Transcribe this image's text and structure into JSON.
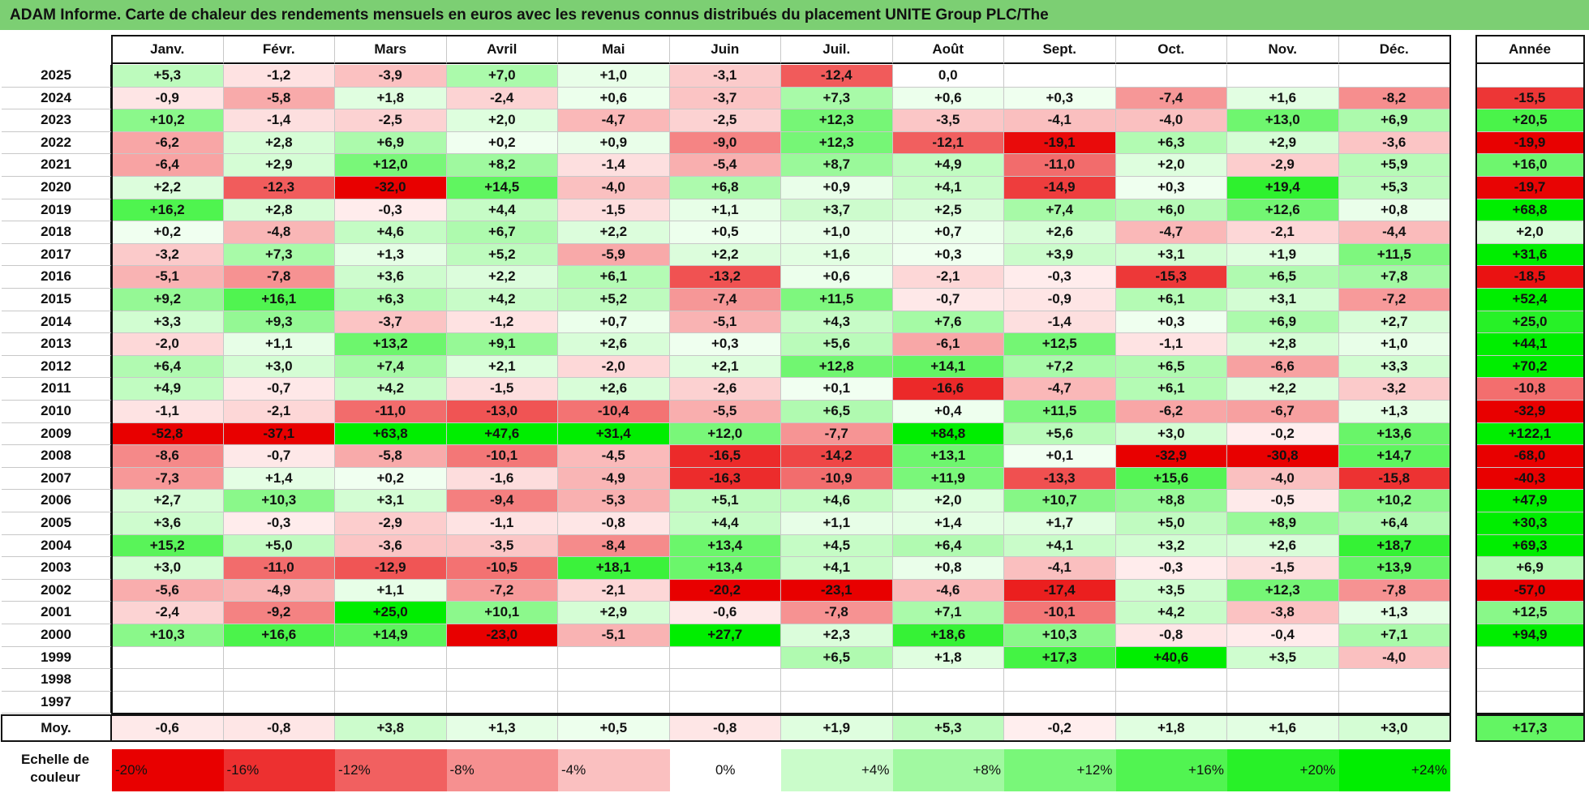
{
  "title": "ADAM Informe. Carte de chaleur des rendements mensuels en euros avec les revenus connus distribués du placement UNITE Group PLC/The",
  "chart_data": {
    "type": "heatmap",
    "months": [
      "Janv.",
      "Févr.",
      "Mars",
      "Avril",
      "Mai",
      "Juin",
      "Juil.",
      "Août",
      "Sept.",
      "Oct.",
      "Nov.",
      "Déc."
    ],
    "year_header": "Année",
    "rows": [
      {
        "year": "2025",
        "values": [
          "+5,3",
          "-1,2",
          "-3,9",
          "+7,0",
          "+1,0",
          "-3,1",
          "-12,4",
          "0,0",
          "",
          "",
          "",
          ""
        ],
        "annual": ""
      },
      {
        "year": "2024",
        "values": [
          "-0,9",
          "-5,8",
          "+1,8",
          "-2,4",
          "+0,6",
          "-3,7",
          "+7,3",
          "+0,6",
          "+0,3",
          "-7,4",
          "+1,6",
          "-8,2"
        ],
        "annual": "-15,5"
      },
      {
        "year": "2023",
        "values": [
          "+10,2",
          "-1,4",
          "-2,5",
          "+2,0",
          "-4,7",
          "-2,5",
          "+12,3",
          "-3,5",
          "-4,1",
          "-4,0",
          "+13,0",
          "+6,9"
        ],
        "annual": "+20,5"
      },
      {
        "year": "2022",
        "values": [
          "-6,2",
          "+2,8",
          "+6,9",
          "+0,2",
          "+0,9",
          "-9,0",
          "+12,3",
          "-12,1",
          "-19,1",
          "+6,3",
          "+2,9",
          "-3,6"
        ],
        "annual": "-19,9"
      },
      {
        "year": "2021",
        "values": [
          "-6,4",
          "+2,9",
          "+12,0",
          "+8,2",
          "-1,4",
          "-5,4",
          "+8,7",
          "+4,9",
          "-11,0",
          "+2,0",
          "-2,9",
          "+5,9"
        ],
        "annual": "+16,0"
      },
      {
        "year": "2020",
        "values": [
          "+2,2",
          "-12,3",
          "-32,0",
          "+14,5",
          "-4,0",
          "+6,8",
          "+0,9",
          "+4,1",
          "-14,9",
          "+0,3",
          "+19,4",
          "+5,3"
        ],
        "annual": "-19,7"
      },
      {
        "year": "2019",
        "values": [
          "+16,2",
          "+2,8",
          "-0,3",
          "+4,4",
          "-1,5",
          "+1,1",
          "+3,7",
          "+2,5",
          "+7,4",
          "+6,0",
          "+12,6",
          "+0,8"
        ],
        "annual": "+68,8"
      },
      {
        "year": "2018",
        "values": [
          "+0,2",
          "-4,8",
          "+4,6",
          "+6,7",
          "+2,2",
          "+0,5",
          "+1,0",
          "+0,7",
          "+2,6",
          "-4,7",
          "-2,1",
          "-4,4"
        ],
        "annual": "+2,0"
      },
      {
        "year": "2017",
        "values": [
          "-3,2",
          "+7,3",
          "+1,3",
          "+5,2",
          "-5,9",
          "+2,2",
          "+1,6",
          "+0,3",
          "+3,9",
          "+3,1",
          "+1,9",
          "+11,5"
        ],
        "annual": "+31,6"
      },
      {
        "year": "2016",
        "values": [
          "-5,1",
          "-7,8",
          "+3,6",
          "+2,2",
          "+6,1",
          "-13,2",
          "+0,6",
          "-2,1",
          "-0,3",
          "-15,3",
          "+6,5",
          "+7,8"
        ],
        "annual": "-18,5"
      },
      {
        "year": "2015",
        "values": [
          "+9,2",
          "+16,1",
          "+6,3",
          "+4,2",
          "+5,2",
          "-7,4",
          "+11,5",
          "-0,7",
          "-0,9",
          "+6,1",
          "+3,1",
          "-7,2"
        ],
        "annual": "+52,4"
      },
      {
        "year": "2014",
        "values": [
          "+3,3",
          "+9,3",
          "-3,7",
          "-1,2",
          "+0,7",
          "-5,1",
          "+4,3",
          "+7,6",
          "-1,4",
          "+0,3",
          "+6,9",
          "+2,7"
        ],
        "annual": "+25,0"
      },
      {
        "year": "2013",
        "values": [
          "-2,0",
          "+1,1",
          "+13,2",
          "+9,1",
          "+2,6",
          "+0,3",
          "+5,6",
          "-6,1",
          "+12,5",
          "-1,1",
          "+2,8",
          "+1,0"
        ],
        "annual": "+44,1"
      },
      {
        "year": "2012",
        "values": [
          "+6,4",
          "+3,0",
          "+7,4",
          "+2,1",
          "-2,0",
          "+2,1",
          "+12,8",
          "+14,1",
          "+7,2",
          "+6,5",
          "-6,6",
          "+3,3"
        ],
        "annual": "+70,2"
      },
      {
        "year": "2011",
        "values": [
          "+4,9",
          "-0,7",
          "+4,2",
          "-1,5",
          "+2,6",
          "-2,6",
          "+0,1",
          "-16,6",
          "-4,7",
          "+6,1",
          "+2,2",
          "-3,2"
        ],
        "annual": "-10,8"
      },
      {
        "year": "2010",
        "values": [
          "-1,1",
          "-2,1",
          "-11,0",
          "-13,0",
          "-10,4",
          "-5,5",
          "+6,5",
          "+0,4",
          "+11,5",
          "-6,2",
          "-6,7",
          "+1,3"
        ],
        "annual": "-32,9"
      },
      {
        "year": "2009",
        "values": [
          "-52,8",
          "-37,1",
          "+63,8",
          "+47,6",
          "+31,4",
          "+12,0",
          "-7,7",
          "+84,8",
          "+5,6",
          "+3,0",
          "-0,2",
          "+13,6"
        ],
        "annual": "+122,1"
      },
      {
        "year": "2008",
        "values": [
          "-8,6",
          "-0,7",
          "-5,8",
          "-10,1",
          "-4,5",
          "-16,5",
          "-14,2",
          "+13,1",
          "+0,1",
          "-32,9",
          "-30,8",
          "+14,7"
        ],
        "annual": "-68,0"
      },
      {
        "year": "2007",
        "values": [
          "-7,3",
          "+1,4",
          "+0,2",
          "-1,6",
          "-4,9",
          "-16,3",
          "-10,9",
          "+11,9",
          "-13,3",
          "+15,6",
          "-4,0",
          "-15,8"
        ],
        "annual": "-40,3"
      },
      {
        "year": "2006",
        "values": [
          "+2,7",
          "+10,3",
          "+3,1",
          "-9,4",
          "-5,3",
          "+5,1",
          "+4,6",
          "+2,0",
          "+10,7",
          "+8,8",
          "-0,5",
          "+10,2"
        ],
        "annual": "+47,9"
      },
      {
        "year": "2005",
        "values": [
          "+3,6",
          "-0,3",
          "-2,9",
          "-1,1",
          "-0,8",
          "+4,4",
          "+1,1",
          "+1,4",
          "+1,7",
          "+5,0",
          "+8,9",
          "+6,4"
        ],
        "annual": "+30,3"
      },
      {
        "year": "2004",
        "values": [
          "+15,2",
          "+5,0",
          "-3,6",
          "-3,5",
          "-8,4",
          "+13,4",
          "+4,5",
          "+6,4",
          "+4,1",
          "+3,2",
          "+2,6",
          "+18,7"
        ],
        "annual": "+69,3"
      },
      {
        "year": "2003",
        "values": [
          "+3,0",
          "-11,0",
          "-12,9",
          "-10,5",
          "+18,1",
          "+13,4",
          "+4,1",
          "+0,8",
          "-4,1",
          "-0,3",
          "-1,5",
          "+13,9"
        ],
        "annual": "+6,9"
      },
      {
        "year": "2002",
        "values": [
          "-5,6",
          "-4,9",
          "+1,1",
          "-7,2",
          "-2,1",
          "-20,2",
          "-23,1",
          "-4,6",
          "-17,4",
          "+3,5",
          "+12,3",
          "-7,8"
        ],
        "annual": "-57,0"
      },
      {
        "year": "2001",
        "values": [
          "-2,4",
          "-9,2",
          "+25,0",
          "+10,1",
          "+2,9",
          "-0,6",
          "-7,8",
          "+7,1",
          "-10,1",
          "+4,2",
          "-3,8",
          "+1,3"
        ],
        "annual": "+12,5"
      },
      {
        "year": "2000",
        "values": [
          "+10,3",
          "+16,6",
          "+14,9",
          "-23,0",
          "-5,1",
          "+27,7",
          "+2,3",
          "+18,6",
          "+10,3",
          "-0,8",
          "-0,4",
          "+7,1"
        ],
        "annual": "+94,9"
      },
      {
        "year": "1999",
        "values": [
          "",
          "",
          "",
          "",
          "",
          "",
          "+6,5",
          "+1,8",
          "+17,3",
          "+40,6",
          "+3,5",
          "-4,0"
        ],
        "annual": ""
      },
      {
        "year": "1998",
        "values": [
          "",
          "",
          "",
          "",
          "",
          "",
          "",
          "",
          "",
          "",
          "",
          ""
        ],
        "annual": ""
      },
      {
        "year": "1997",
        "values": [
          "",
          "",
          "",
          "",
          "",
          "",
          "",
          "",
          "",
          "",
          "",
          ""
        ],
        "annual": ""
      }
    ],
    "average": {
      "label": "Moy.",
      "values": [
        "-0,6",
        "-0,8",
        "+3,8",
        "+1,3",
        "+0,5",
        "-0,8",
        "+1,9",
        "+5,3",
        "-0,2",
        "+1,8",
        "+1,6",
        "+3,0"
      ],
      "annual": "+17,3"
    },
    "scale": {
      "label": "Echelle de couleur",
      "items": [
        "-20%",
        "-16%",
        "-12%",
        "-8%",
        "-4%",
        "0%",
        "+4%",
        "+8%",
        "+12%",
        "+16%",
        "+20%",
        "+24%"
      ]
    }
  }
}
